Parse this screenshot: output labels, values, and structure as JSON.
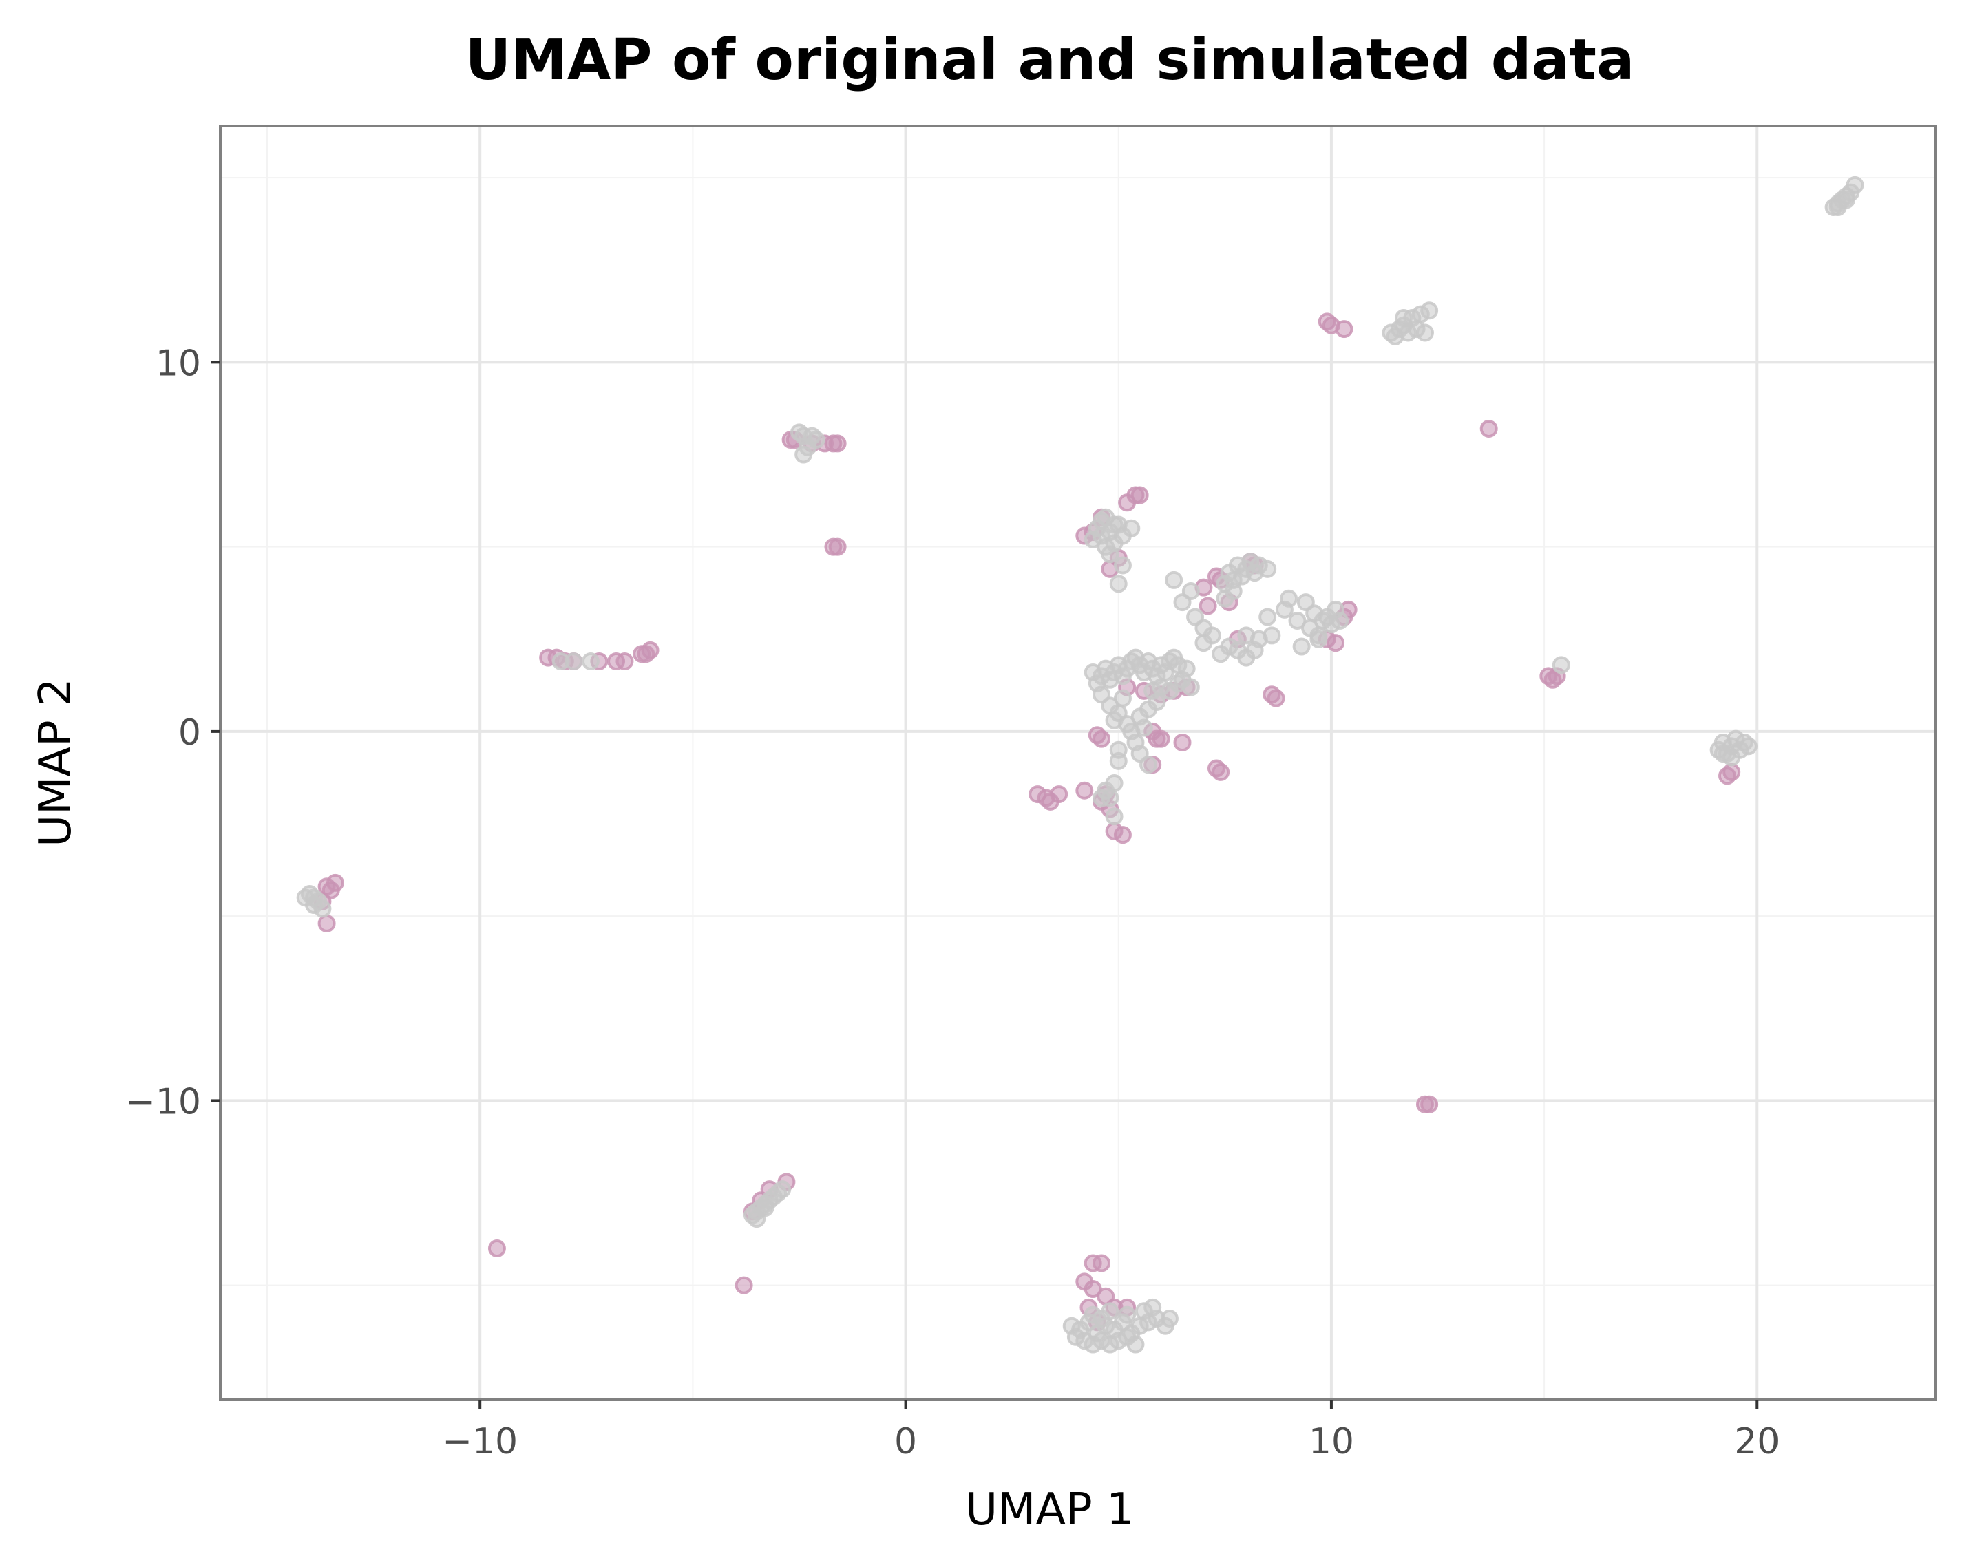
{
  "chart_data": {
    "type": "scatter",
    "title": "UMAP of original and simulated data",
    "xlabel": "UMAP 1",
    "ylabel": "UMAP 2",
    "xlim": [
      -16.1,
      24.2
    ],
    "ylim": [
      -18.1,
      16.4
    ],
    "xticks": [
      -10,
      0,
      10,
      20
    ],
    "xtick_labels": [
      "−10",
      "0",
      "10",
      "20"
    ],
    "yticks": [
      -10,
      0,
      10
    ],
    "ytick_labels": [
      "−10",
      "0",
      "10"
    ],
    "grid": true,
    "legend": "none",
    "colors": {
      "original": "#c994b4",
      "simulated": "#c8c8c8",
      "panel_border": "#808080",
      "grid": "#e6e6e6"
    },
    "series": [
      {
        "color": "#c994b4",
        "points": [
          [
            -13.6,
            -4.2
          ],
          [
            -13.5,
            -4.3
          ],
          [
            -13.7,
            -4.6
          ],
          [
            -13.6,
            -5.2
          ],
          [
            -13.4,
            -4.1
          ],
          [
            -8.4,
            2.0
          ],
          [
            -8.2,
            2.0
          ],
          [
            -8.0,
            1.9
          ],
          [
            -7.8,
            1.9
          ],
          [
            -7.2,
            1.9
          ],
          [
            -6.8,
            1.9
          ],
          [
            -6.6,
            1.9
          ],
          [
            -6.2,
            2.1
          ],
          [
            -6.0,
            2.2
          ],
          [
            -6.1,
            2.1
          ],
          [
            -2.7,
            7.9
          ],
          [
            -2.6,
            7.9
          ],
          [
            -2.2,
            7.8
          ],
          [
            -1.9,
            7.8
          ],
          [
            -1.7,
            7.8
          ],
          [
            -1.6,
            7.8
          ],
          [
            -1.7,
            5.0
          ],
          [
            -1.6,
            5.0
          ],
          [
            -9.6,
            -14.0
          ],
          [
            -3.8,
            -15.0
          ],
          [
            -3.2,
            -12.4
          ],
          [
            -2.8,
            -12.2
          ],
          [
            -3.4,
            -12.7
          ],
          [
            -3.6,
            -13.0
          ],
          [
            3.1,
            -1.7
          ],
          [
            3.3,
            -1.8
          ],
          [
            3.4,
            -1.9
          ],
          [
            3.6,
            -1.7
          ],
          [
            4.2,
            -1.6
          ],
          [
            4.7,
            -1.7
          ],
          [
            4.8,
            -2.1
          ],
          [
            4.9,
            -2.7
          ],
          [
            5.1,
            -2.8
          ],
          [
            4.6,
            -1.9
          ],
          [
            4.5,
            -0.1
          ],
          [
            4.6,
            -0.2
          ],
          [
            5.2,
            1.2
          ],
          [
            5.6,
            1.1
          ],
          [
            5.8,
            0.0
          ],
          [
            5.9,
            -0.2
          ],
          [
            6.0,
            -0.2
          ],
          [
            5.8,
            -0.9
          ],
          [
            6.0,
            1.0
          ],
          [
            6.3,
            1.1
          ],
          [
            6.6,
            1.2
          ],
          [
            6.5,
            -0.3
          ],
          [
            7.4,
            -1.1
          ],
          [
            7.3,
            -1.0
          ],
          [
            4.2,
            5.3
          ],
          [
            4.4,
            5.4
          ],
          [
            4.6,
            5.8
          ],
          [
            5.0,
            4.7
          ],
          [
            5.2,
            6.2
          ],
          [
            5.4,
            6.4
          ],
          [
            5.5,
            6.4
          ],
          [
            4.8,
            4.4
          ],
          [
            7.0,
            3.9
          ],
          [
            7.3,
            4.2
          ],
          [
            7.4,
            4.1
          ],
          [
            7.6,
            3.5
          ],
          [
            7.1,
            3.4
          ],
          [
            7.8,
            2.5
          ],
          [
            8.1,
            4.6
          ],
          [
            8.2,
            4.5
          ],
          [
            8.6,
            1.0
          ],
          [
            8.7,
            0.9
          ],
          [
            9.9,
            2.5
          ],
          [
            10.1,
            2.4
          ],
          [
            10.4,
            3.3
          ],
          [
            10.3,
            3.1
          ],
          [
            9.9,
            11.1
          ],
          [
            10.0,
            11.0
          ],
          [
            10.3,
            10.9
          ],
          [
            13.7,
            8.2
          ],
          [
            15.1,
            1.5
          ],
          [
            15.3,
            1.5
          ],
          [
            15.2,
            1.4
          ],
          [
            19.3,
            -1.2
          ],
          [
            19.4,
            -1.1
          ],
          [
            12.2,
            -10.1
          ],
          [
            12.3,
            -10.1
          ],
          [
            4.4,
            -14.4
          ],
          [
            4.6,
            -14.4
          ],
          [
            4.2,
            -14.9
          ],
          [
            4.4,
            -15.1
          ],
          [
            4.3,
            -15.6
          ],
          [
            4.7,
            -15.3
          ],
          [
            4.9,
            -15.6
          ],
          [
            4.5,
            -16.0
          ],
          [
            5.2,
            -15.6
          ]
        ]
      },
      {
        "color": "#c8c8c8",
        "points": [
          [
            -14.0,
            -4.4
          ],
          [
            -13.9,
            -4.5
          ],
          [
            -13.8,
            -4.6
          ],
          [
            -13.7,
            -4.8
          ],
          [
            -13.9,
            -4.7
          ],
          [
            -14.1,
            -4.5
          ],
          [
            -8.1,
            1.9
          ],
          [
            -7.8,
            1.9
          ],
          [
            -7.4,
            1.9
          ],
          [
            -2.5,
            8.1
          ],
          [
            -2.4,
            8.0
          ],
          [
            -2.3,
            7.7
          ],
          [
            -2.2,
            8.0
          ],
          [
            -2.1,
            7.9
          ],
          [
            -2.4,
            7.5
          ],
          [
            -3.5,
            -13.0
          ],
          [
            -3.4,
            -12.9
          ],
          [
            -3.3,
            -12.8
          ],
          [
            -3.2,
            -12.7
          ],
          [
            -3.1,
            -12.6
          ],
          [
            -3.0,
            -12.5
          ],
          [
            -3.3,
            -12.9
          ],
          [
            -3.5,
            -13.2
          ],
          [
            -2.9,
            -12.4
          ],
          [
            -3.6,
            -13.1
          ],
          [
            4.4,
            5.2
          ],
          [
            4.5,
            5.5
          ],
          [
            4.6,
            5.3
          ],
          [
            4.7,
            5.0
          ],
          [
            4.8,
            5.4
          ],
          [
            4.9,
            5.1
          ],
          [
            5.0,
            5.6
          ],
          [
            5.1,
            5.3
          ],
          [
            4.8,
            4.8
          ],
          [
            5.1,
            4.5
          ],
          [
            5.0,
            4.0
          ],
          [
            4.6,
            5.7
          ],
          [
            5.3,
            5.5
          ],
          [
            4.9,
            5.6
          ],
          [
            4.7,
            5.8
          ],
          [
            4.4,
            1.6
          ],
          [
            4.5,
            1.3
          ],
          [
            4.6,
            1.5
          ],
          [
            4.7,
            1.7
          ],
          [
            4.8,
            1.4
          ],
          [
            4.9,
            1.6
          ],
          [
            5.0,
            1.8
          ],
          [
            5.1,
            1.5
          ],
          [
            5.2,
            1.7
          ],
          [
            5.3,
            1.9
          ],
          [
            5.4,
            2.0
          ],
          [
            5.5,
            1.8
          ],
          [
            5.6,
            1.6
          ],
          [
            5.7,
            1.9
          ],
          [
            5.8,
            1.7
          ],
          [
            5.9,
            1.5
          ],
          [
            6.0,
            1.8
          ],
          [
            6.1,
            1.6
          ],
          [
            6.2,
            1.9
          ],
          [
            6.3,
            2.0
          ],
          [
            6.4,
            1.8
          ],
          [
            6.5,
            1.4
          ],
          [
            6.6,
            1.7
          ],
          [
            6.7,
            1.2
          ],
          [
            4.6,
            1.0
          ],
          [
            4.8,
            0.7
          ],
          [
            4.9,
            0.3
          ],
          [
            5.0,
            0.5
          ],
          [
            5.1,
            0.9
          ],
          [
            5.2,
            0.2
          ],
          [
            5.3,
            0.0
          ],
          [
            5.4,
            -0.3
          ],
          [
            5.5,
            0.4
          ],
          [
            5.6,
            0.1
          ],
          [
            5.7,
            0.6
          ],
          [
            5.8,
            1.1
          ],
          [
            5.9,
            0.8
          ],
          [
            6.0,
            1.2
          ],
          [
            6.2,
            1.1
          ],
          [
            6.4,
            1.3
          ],
          [
            5.0,
            -0.5
          ],
          [
            5.0,
            -0.8
          ],
          [
            5.5,
            -0.6
          ],
          [
            5.7,
            -0.9
          ],
          [
            4.9,
            -1.4
          ],
          [
            4.8,
            -1.8
          ],
          [
            4.9,
            -2.3
          ],
          [
            4.7,
            -1.6
          ],
          [
            4.6,
            -1.8
          ],
          [
            6.3,
            4.1
          ],
          [
            6.5,
            3.5
          ],
          [
            6.7,
            3.8
          ],
          [
            6.8,
            3.1
          ],
          [
            7.0,
            2.8
          ],
          [
            7.0,
            2.4
          ],
          [
            7.2,
            2.6
          ],
          [
            7.4,
            2.1
          ],
          [
            7.6,
            2.3
          ],
          [
            7.8,
            2.2
          ],
          [
            8.0,
            2.0
          ],
          [
            8.2,
            2.2
          ],
          [
            8.0,
            2.6
          ],
          [
            8.3,
            2.5
          ],
          [
            8.5,
            3.1
          ],
          [
            8.6,
            2.6
          ],
          [
            8.9,
            3.3
          ],
          [
            9.0,
            3.6
          ],
          [
            9.2,
            3.0
          ],
          [
            9.3,
            2.3
          ],
          [
            9.4,
            3.5
          ],
          [
            9.5,
            2.8
          ],
          [
            9.6,
            3.2
          ],
          [
            9.7,
            2.6
          ],
          [
            9.8,
            3.0
          ],
          [
            9.9,
            3.1
          ],
          [
            10.0,
            2.9
          ],
          [
            10.1,
            3.3
          ],
          [
            10.2,
            3.0
          ],
          [
            9.7,
            2.5
          ],
          [
            7.5,
            4.0
          ],
          [
            7.6,
            4.3
          ],
          [
            7.7,
            4.1
          ],
          [
            7.8,
            4.5
          ],
          [
            7.9,
            4.2
          ],
          [
            8.0,
            4.4
          ],
          [
            8.1,
            4.6
          ],
          [
            8.2,
            4.3
          ],
          [
            8.3,
            4.5
          ],
          [
            8.5,
            4.4
          ],
          [
            7.7,
            3.8
          ],
          [
            7.5,
            3.6
          ],
          [
            11.4,
            10.8
          ],
          [
            11.5,
            10.7
          ],
          [
            11.6,
            10.9
          ],
          [
            11.7,
            11.0
          ],
          [
            11.8,
            10.8
          ],
          [
            11.9,
            11.2
          ],
          [
            12.0,
            10.9
          ],
          [
            12.2,
            10.8
          ],
          [
            12.1,
            11.3
          ],
          [
            12.3,
            11.4
          ],
          [
            11.7,
            11.2
          ],
          [
            15.4,
            1.8
          ],
          [
            19.1,
            -0.5
          ],
          [
            19.2,
            -0.3
          ],
          [
            19.3,
            -0.6
          ],
          [
            19.4,
            -0.4
          ],
          [
            19.5,
            -0.2
          ],
          [
            19.6,
            -0.5
          ],
          [
            19.7,
            -0.3
          ],
          [
            19.8,
            -0.4
          ],
          [
            19.4,
            -0.7
          ],
          [
            19.2,
            -0.6
          ],
          [
            21.8,
            14.2
          ],
          [
            21.9,
            14.3
          ],
          [
            22.0,
            14.4
          ],
          [
            22.1,
            14.5
          ],
          [
            22.2,
            14.6
          ],
          [
            22.3,
            14.8
          ],
          [
            21.9,
            14.2
          ],
          [
            22.1,
            14.4
          ],
          [
            3.9,
            -16.1
          ],
          [
            4.1,
            -16.2
          ],
          [
            4.3,
            -16.0
          ],
          [
            4.5,
            -16.3
          ],
          [
            4.7,
            -16.1
          ],
          [
            4.9,
            -16.2
          ],
          [
            5.1,
            -16.0
          ],
          [
            5.3,
            -16.3
          ],
          [
            5.5,
            -16.1
          ],
          [
            5.7,
            -16.0
          ],
          [
            5.9,
            -15.9
          ],
          [
            6.1,
            -16.1
          ],
          [
            6.2,
            -15.9
          ],
          [
            4.2,
            -16.5
          ],
          [
            4.4,
            -16.6
          ],
          [
            4.6,
            -16.5
          ],
          [
            4.8,
            -16.6
          ],
          [
            5.0,
            -16.5
          ],
          [
            5.2,
            -16.4
          ],
          [
            5.4,
            -16.6
          ],
          [
            4.0,
            -16.4
          ],
          [
            4.4,
            -15.8
          ],
          [
            4.8,
            -15.7
          ],
          [
            5.2,
            -15.8
          ],
          [
            5.6,
            -15.7
          ],
          [
            5.8,
            -15.6
          ],
          [
            4.6,
            -15.9
          ]
        ]
      }
    ]
  }
}
